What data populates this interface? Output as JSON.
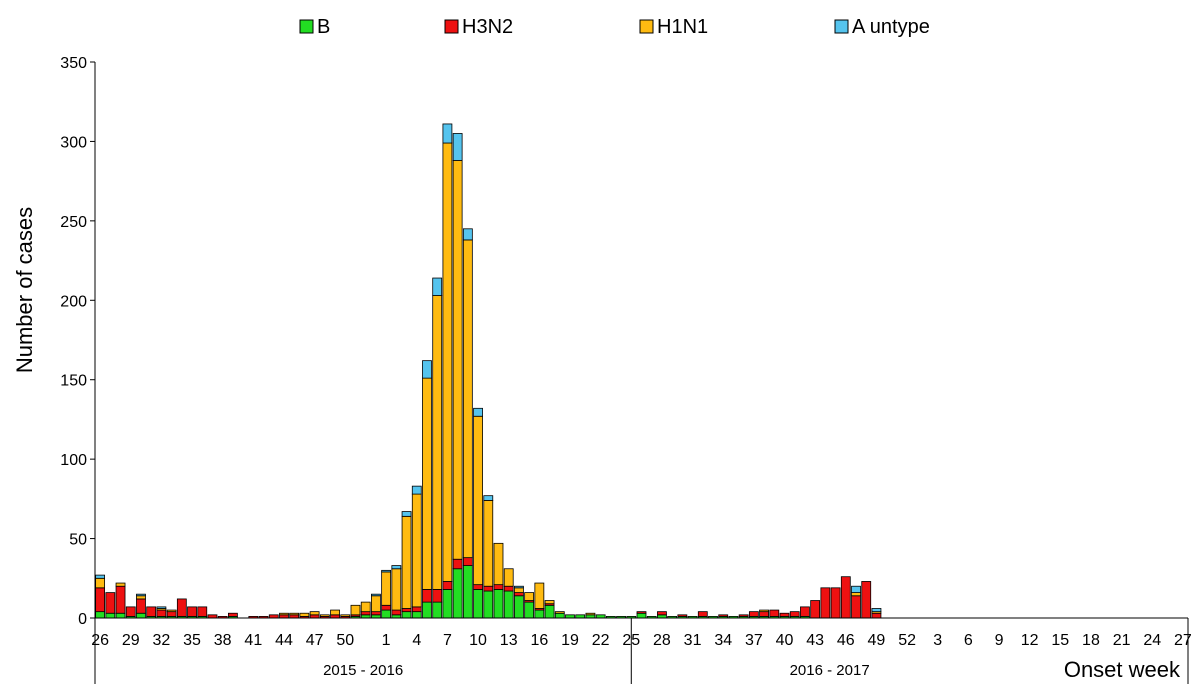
{
  "chart_data": {
    "type": "bar",
    "stacked": true,
    "title": "",
    "ylabel": "Number of cases",
    "xlabel": "Onset week",
    "ylim": [
      0,
      350
    ],
    "yticks": [
      0,
      50,
      100,
      150,
      200,
      250,
      300,
      350
    ],
    "grid": false,
    "legend_position": "top",
    "series_order": [
      "B",
      "H3N2",
      "H1N1",
      "A untype"
    ],
    "colors": {
      "B": "#22dd22",
      "H3N2": "#ee1111",
      "H1N1": "#ffbb11",
      "A untype": "#55c4ee"
    },
    "seasons": [
      {
        "label": "2015 - 2016",
        "weeks": [
          26,
          27,
          28,
          29,
          30,
          31,
          32,
          33,
          34,
          35,
          36,
          37,
          38,
          39,
          40,
          41,
          42,
          43,
          44,
          45,
          46,
          47,
          48,
          49,
          50,
          51,
          52,
          53,
          1,
          2,
          3,
          4,
          5,
          6,
          7,
          8,
          9,
          10,
          11,
          12,
          13,
          14,
          15,
          16,
          17,
          18,
          19,
          20,
          21,
          22,
          23,
          24,
          25
        ]
      },
      {
        "label": "2016 - 2017",
        "weeks": [
          25,
          26,
          27,
          28,
          29,
          30,
          31,
          32,
          33,
          34,
          35,
          36,
          37,
          38,
          39,
          40,
          41,
          42,
          43,
          44,
          45,
          46,
          47,
          48,
          49,
          50,
          51,
          52,
          1,
          2,
          3,
          4,
          5,
          6,
          7,
          8,
          9,
          10,
          11,
          12,
          13,
          14,
          15,
          16,
          17,
          18,
          19,
          20,
          21,
          22,
          23,
          24,
          25,
          26,
          27
        ]
      }
    ],
    "xtick_labels": [
      "26",
      "29",
      "32",
      "35",
      "38",
      "41",
      "44",
      "47",
      "50",
      "1",
      "4",
      "7",
      "10",
      "13",
      "16",
      "19",
      "22",
      "25",
      "28",
      "31",
      "34",
      "37",
      "40",
      "43",
      "46",
      "49",
      "52",
      "3",
      "6",
      "9",
      "12",
      "15",
      "18",
      "21",
      "24",
      "27"
    ],
    "xtick_index": [
      0,
      3,
      6,
      9,
      12,
      15,
      18,
      21,
      24,
      28,
      31,
      34,
      37,
      40,
      43,
      46,
      49,
      52,
      55,
      58,
      61,
      64,
      67,
      70,
      73,
      76,
      79,
      82,
      85,
      88,
      91,
      94,
      97,
      100,
      103,
      106
    ],
    "x_count": 107,
    "season_split_index": 52.5,
    "series": [
      {
        "name": "B",
        "values": [
          4,
          3,
          3,
          1,
          3,
          1,
          1,
          1,
          1,
          1,
          1,
          0,
          0,
          1,
          0,
          0,
          0,
          0,
          0,
          0,
          0,
          0,
          0,
          0,
          0,
          1,
          2,
          2,
          5,
          2,
          4,
          4,
          10,
          10,
          18,
          31,
          33,
          18,
          17,
          18,
          17,
          14,
          10,
          5,
          8,
          3,
          2,
          2,
          2,
          2,
          1,
          1,
          1,
          3,
          1,
          2,
          1,
          1,
          1,
          1,
          1,
          1,
          1,
          1,
          1,
          1,
          1,
          1,
          1,
          1,
          0,
          0,
          0,
          0,
          0,
          0,
          0,
          0,
          0,
          0,
          0,
          0,
          0,
          0,
          0,
          0,
          0,
          0,
          0,
          0,
          0,
          0,
          0,
          0,
          0,
          0,
          0,
          0,
          0,
          0,
          0,
          0,
          0,
          0,
          0,
          0,
          0
        ]
      },
      {
        "name": "H3N2",
        "values": [
          15,
          13,
          17,
          6,
          9,
          6,
          4,
          3,
          11,
          6,
          6,
          2,
          1,
          2,
          0,
          1,
          1,
          2,
          2,
          2,
          1,
          2,
          1,
          2,
          1,
          1,
          2,
          2,
          3,
          3,
          2,
          3,
          8,
          8,
          5,
          6,
          5,
          3,
          3,
          3,
          3,
          2,
          1,
          1,
          1,
          0,
          0,
          0,
          0,
          0,
          0,
          0,
          0,
          1,
          0,
          2,
          0,
          1,
          0,
          3,
          0,
          1,
          0,
          1,
          3,
          3,
          4,
          2,
          3,
          6,
          11,
          19,
          19,
          26,
          14,
          23,
          3,
          0,
          0,
          0,
          0,
          0,
          0,
          0,
          0,
          0,
          0,
          0,
          0,
          0,
          0,
          0,
          0,
          0,
          0,
          0,
          0,
          0,
          0,
          0,
          0,
          0,
          0,
          0,
          0,
          0,
          0
        ]
      },
      {
        "name": "H1N1",
        "values": [
          6,
          0,
          2,
          0,
          2,
          0,
          1,
          1,
          0,
          0,
          0,
          0,
          0,
          0,
          0,
          0,
          0,
          0,
          1,
          1,
          2,
          2,
          1,
          3,
          1,
          6,
          6,
          10,
          21,
          26,
          58,
          71,
          133,
          185,
          276,
          251,
          200,
          106,
          54,
          26,
          11,
          3,
          5,
          16,
          2,
          1,
          0,
          0,
          1,
          0,
          0,
          0,
          0,
          0,
          0,
          0,
          0,
          0,
          0,
          0,
          0,
          0,
          0,
          0,
          0,
          1,
          0,
          0,
          0,
          0,
          0,
          0,
          0,
          0,
          2,
          0,
          1,
          0,
          0,
          0,
          0,
          0,
          0,
          0,
          0,
          0,
          0,
          0,
          0,
          0,
          0,
          0,
          0,
          0,
          0,
          0,
          0,
          0,
          0,
          0,
          0,
          0,
          0,
          0,
          0,
          0,
          0
        ]
      },
      {
        "name": "A untype",
        "values": [
          2,
          0,
          0,
          0,
          1,
          0,
          1,
          0,
          0,
          0,
          0,
          0,
          0,
          0,
          0,
          0,
          0,
          0,
          0,
          0,
          0,
          0,
          0,
          0,
          0,
          0,
          0,
          1,
          1,
          2,
          3,
          5,
          11,
          11,
          12,
          17,
          7,
          5,
          3,
          0,
          0,
          1,
          0,
          0,
          0,
          0,
          0,
          0,
          0,
          0,
          0,
          0,
          0,
          0,
          0,
          0,
          0,
          0,
          0,
          0,
          0,
          0,
          0,
          0,
          0,
          0,
          0,
          0,
          0,
          0,
          0,
          0,
          0,
          0,
          4,
          0,
          2,
          0,
          0,
          0,
          0,
          0,
          0,
          0,
          0,
          0,
          0,
          0,
          0,
          0,
          0,
          0,
          0,
          0,
          0,
          0,
          0,
          0,
          0,
          0,
          0,
          0,
          0,
          0,
          0,
          0,
          0
        ]
      }
    ]
  }
}
